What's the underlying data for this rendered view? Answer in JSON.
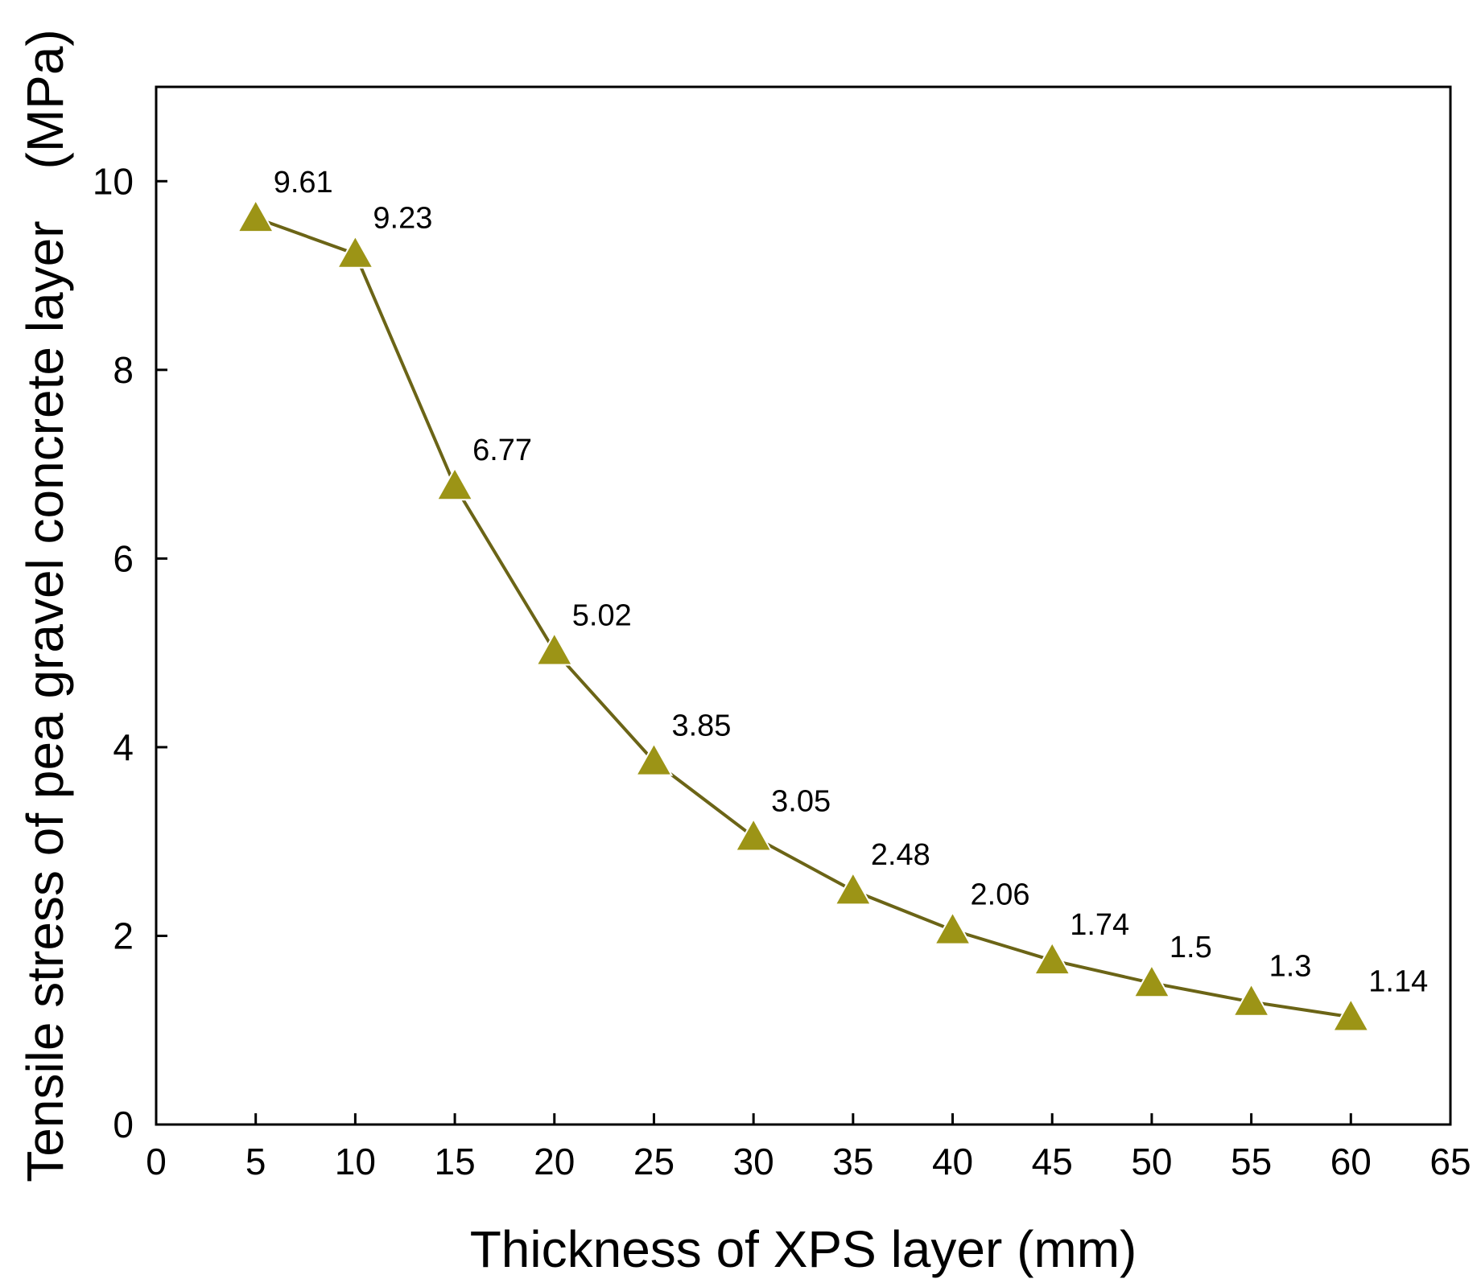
{
  "chart_data": {
    "type": "line",
    "title": "",
    "xlabel": "Thickness of XPS layer (mm)",
    "ylabel": "Tensile stress of pea gravel concrete layer　(MPa)",
    "xlim": [
      0,
      65
    ],
    "ylim": [
      0,
      11
    ],
    "xticks": [
      "0",
      "5",
      "10",
      "15",
      "20",
      "25",
      "30",
      "35",
      "40",
      "45",
      "50",
      "55",
      "60",
      "65"
    ],
    "yticks": [
      "0",
      "2",
      "4",
      "6",
      "8",
      "10"
    ],
    "grid": false,
    "marker": "triangle",
    "color": "#9c9416",
    "line_color": "#6b6416",
    "x": [
      5,
      10,
      15,
      20,
      25,
      30,
      35,
      40,
      45,
      50,
      55,
      60
    ],
    "y": [
      9.61,
      9.23,
      6.77,
      5.02,
      3.85,
      3.05,
      2.48,
      2.06,
      1.74,
      1.5,
      1.3,
      1.14
    ],
    "labels": [
      "9.61",
      "9.23",
      "6.77",
      "5.02",
      "3.85",
      "3.05",
      "2.48",
      "2.06",
      "1.74",
      "1.5",
      "1.3",
      "1.14"
    ]
  }
}
